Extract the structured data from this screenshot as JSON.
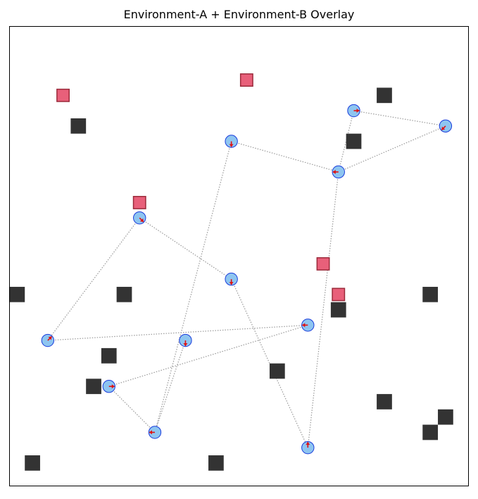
{
  "title": "Environment-A + Environment-B Overlay",
  "chart_data": {
    "type": "scatter",
    "xlim": [
      0,
      30
    ],
    "ylim": [
      0,
      30
    ],
    "grid": false,
    "colors": {
      "obstacle": "#333333",
      "target_fill": "#e8607a",
      "target_edge": "#9b2a3a",
      "agent_fill": "#8ec5f0",
      "agent_edge": "#1a3cdc",
      "heading": "#e01010",
      "path": "#999999"
    },
    "obstacles": [
      [
        4.5,
        23.5
      ],
      [
        24.5,
        25.5
      ],
      [
        22.5,
        22.5
      ],
      [
        0.5,
        12.5
      ],
      [
        7.5,
        12.5
      ],
      [
        21.5,
        11.5
      ],
      [
        27.5,
        12.5
      ],
      [
        6.5,
        8.5
      ],
      [
        5.5,
        6.5
      ],
      [
        17.5,
        7.5
      ],
      [
        24.5,
        5.5
      ],
      [
        28.5,
        4.5
      ],
      [
        27.5,
        3.5
      ],
      [
        1.5,
        1.5
      ],
      [
        13.5,
        1.5
      ]
    ],
    "targets": [
      [
        3.5,
        25.5
      ],
      [
        15.5,
        26.5
      ],
      [
        8.5,
        18.5
      ],
      [
        20.5,
        14.5
      ],
      [
        21.5,
        12.5
      ]
    ],
    "agents": [
      {
        "x": 22.5,
        "y": 24.5,
        "dx": 1,
        "dy": 0
      },
      {
        "x": 28.5,
        "y": 23.5,
        "dx": -1,
        "dy": -1
      },
      {
        "x": 14.5,
        "y": 22.5,
        "dx": 0,
        "dy": -1
      },
      {
        "x": 21.5,
        "y": 20.5,
        "dx": -1,
        "dy": 0
      },
      {
        "x": 8.5,
        "y": 17.5,
        "dx": 1,
        "dy": -1
      },
      {
        "x": 14.5,
        "y": 13.5,
        "dx": 0,
        "dy": -1
      },
      {
        "x": 2.5,
        "y": 9.5,
        "dx": 1,
        "dy": 1
      },
      {
        "x": 11.5,
        "y": 9.5,
        "dx": 0,
        "dy": -1
      },
      {
        "x": 19.5,
        "y": 10.5,
        "dx": -1,
        "dy": 0
      },
      {
        "x": 6.5,
        "y": 6.5,
        "dx": 1,
        "dy": 0
      },
      {
        "x": 9.5,
        "y": 3.5,
        "dx": -1,
        "dy": 0
      },
      {
        "x": 19.5,
        "y": 2.5,
        "dx": 0,
        "dy": 1
      }
    ],
    "paths": [
      [
        [
          22.5,
          24.5
        ],
        [
          28.5,
          23.5
        ]
      ],
      [
        [
          28.5,
          23.5
        ],
        [
          21.5,
          20.5
        ]
      ],
      [
        [
          22.5,
          24.5
        ],
        [
          21.5,
          20.5
        ]
      ],
      [
        [
          14.5,
          22.5
        ],
        [
          21.5,
          20.5
        ]
      ],
      [
        [
          21.5,
          20.5
        ],
        [
          19.5,
          2.5
        ]
      ],
      [
        [
          14.5,
          22.5
        ],
        [
          9.5,
          3.5
        ]
      ],
      [
        [
          8.5,
          17.5
        ],
        [
          14.5,
          13.5
        ]
      ],
      [
        [
          8.5,
          17.5
        ],
        [
          2.5,
          9.5
        ]
      ],
      [
        [
          14.5,
          13.5
        ],
        [
          19.5,
          2.5
        ]
      ],
      [
        [
          2.5,
          9.5
        ],
        [
          19.5,
          10.5
        ]
      ],
      [
        [
          19.5,
          10.5
        ],
        [
          6.5,
          6.5
        ]
      ],
      [
        [
          6.5,
          6.5
        ],
        [
          9.5,
          3.5
        ]
      ],
      [
        [
          11.5,
          9.5
        ],
        [
          9.5,
          3.5
        ]
      ]
    ]
  }
}
